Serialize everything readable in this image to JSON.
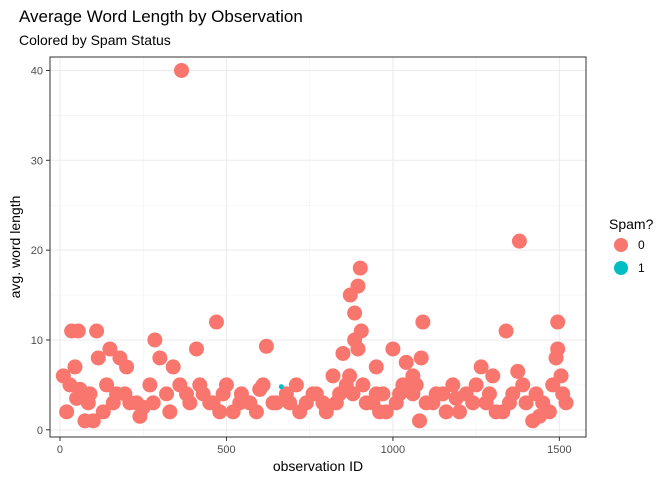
{
  "chart_data": {
    "type": "scatter",
    "title": "Average Word Length by Observation",
    "subtitle": "Colored by Spam Status",
    "xlabel": "observation ID",
    "ylabel": "avg. word length",
    "xlim": [
      -30,
      1580
    ],
    "ylim": [
      -0.8,
      41.5
    ],
    "x_ticks": [
      0,
      500,
      1000,
      1500
    ],
    "y_ticks": [
      0,
      10,
      20,
      30,
      40
    ],
    "grid": true,
    "legend": {
      "title": "Spam?",
      "placement": "right",
      "entries": [
        {
          "label": "0",
          "color": "#F8766D"
        },
        {
          "label": "1",
          "color": "#00BFC4"
        }
      ]
    },
    "series": [
      {
        "name": "0",
        "color": "#F8766D",
        "points": [
          [
            365,
            40
          ],
          [
            1380,
            21
          ],
          [
            902,
            18
          ],
          [
            895,
            16
          ],
          [
            872,
            15
          ],
          [
            885,
            13
          ],
          [
            470,
            12
          ],
          [
            1090,
            12
          ],
          [
            1495,
            12
          ],
          [
            905,
            11
          ],
          [
            1340,
            11
          ],
          [
            35,
            11
          ],
          [
            55,
            11
          ],
          [
            110,
            11
          ],
          [
            285,
            10
          ],
          [
            885,
            10
          ],
          [
            620,
            9.3
          ],
          [
            410,
            9
          ],
          [
            150,
            9
          ],
          [
            1000,
            9
          ],
          [
            1495,
            9
          ],
          [
            895,
            9
          ],
          [
            850,
            8.5
          ],
          [
            115,
            8
          ],
          [
            180,
            8
          ],
          [
            300,
            8
          ],
          [
            1085,
            8
          ],
          [
            1490,
            8
          ],
          [
            200,
            7
          ],
          [
            340,
            7
          ],
          [
            1265,
            7
          ],
          [
            1375,
            6.5
          ],
          [
            45,
            7
          ],
          [
            1040,
            7.5
          ],
          [
            10,
            6
          ],
          [
            30,
            5
          ],
          [
            60,
            4.5
          ],
          [
            85,
            3
          ],
          [
            100,
            1
          ],
          [
            75,
            1
          ],
          [
            140,
            5
          ],
          [
            160,
            3
          ],
          [
            195,
            4
          ],
          [
            230,
            3
          ],
          [
            250,
            2.5
          ],
          [
            270,
            5
          ],
          [
            320,
            4
          ],
          [
            360,
            5
          ],
          [
            390,
            3
          ],
          [
            430,
            4
          ],
          [
            460,
            3
          ],
          [
            500,
            5
          ],
          [
            520,
            2
          ],
          [
            545,
            4
          ],
          [
            570,
            3
          ],
          [
            600,
            4.5
          ],
          [
            640,
            3
          ],
          [
            680,
            4
          ],
          [
            710,
            5
          ],
          [
            740,
            3
          ],
          [
            770,
            4
          ],
          [
            800,
            2
          ],
          [
            830,
            3
          ],
          [
            860,
            5
          ],
          [
            880,
            4
          ],
          [
            920,
            3
          ],
          [
            950,
            4
          ],
          [
            980,
            2
          ],
          [
            1010,
            3
          ],
          [
            1030,
            5
          ],
          [
            1060,
            4
          ],
          [
            1100,
            3
          ],
          [
            1130,
            4
          ],
          [
            1160,
            2
          ],
          [
            1190,
            3.5
          ],
          [
            1220,
            4
          ],
          [
            1250,
            5
          ],
          [
            1280,
            3
          ],
          [
            1310,
            2
          ],
          [
            1360,
            4
          ],
          [
            1400,
            3
          ],
          [
            1420,
            1
          ],
          [
            1450,
            3
          ],
          [
            1470,
            2
          ],
          [
            1510,
            4
          ],
          [
            1520,
            3
          ],
          [
            20,
            2
          ],
          [
            130,
            2
          ],
          [
            240,
            1.5
          ],
          [
            330,
            2
          ],
          [
            480,
            2
          ],
          [
            590,
            2
          ],
          [
            720,
            2
          ],
          [
            960,
            2
          ],
          [
            1080,
            1
          ],
          [
            1200,
            2
          ],
          [
            1330,
            2
          ],
          [
            1440,
            1.5
          ],
          [
            50,
            3.5
          ],
          [
            90,
            4
          ],
          [
            170,
            4
          ],
          [
            210,
            3
          ],
          [
            280,
            3
          ],
          [
            380,
            4
          ],
          [
            420,
            5
          ],
          [
            450,
            3
          ],
          [
            490,
            4
          ],
          [
            540,
            3
          ],
          [
            610,
            5
          ],
          [
            650,
            3
          ],
          [
            690,
            3
          ],
          [
            760,
            4
          ],
          [
            790,
            3
          ],
          [
            840,
            4
          ],
          [
            870,
            6
          ],
          [
            910,
            5
          ],
          [
            940,
            3
          ],
          [
            970,
            4
          ],
          [
            1020,
            4
          ],
          [
            1070,
            5
          ],
          [
            1120,
            3
          ],
          [
            1150,
            4
          ],
          [
            1180,
            5
          ],
          [
            1240,
            3
          ],
          [
            1290,
            4
          ],
          [
            1350,
            3
          ],
          [
            1390,
            5
          ],
          [
            1430,
            4
          ],
          [
            1480,
            5
          ],
          [
            1505,
            6
          ],
          [
            950,
            7
          ],
          [
            1060,
            6
          ],
          [
            1300,
            6
          ],
          [
            820,
            6
          ]
        ]
      },
      {
        "name": "1",
        "color": "#00BFC4",
        "points": [
          [
            665,
            4.8
          ]
        ]
      }
    ]
  }
}
